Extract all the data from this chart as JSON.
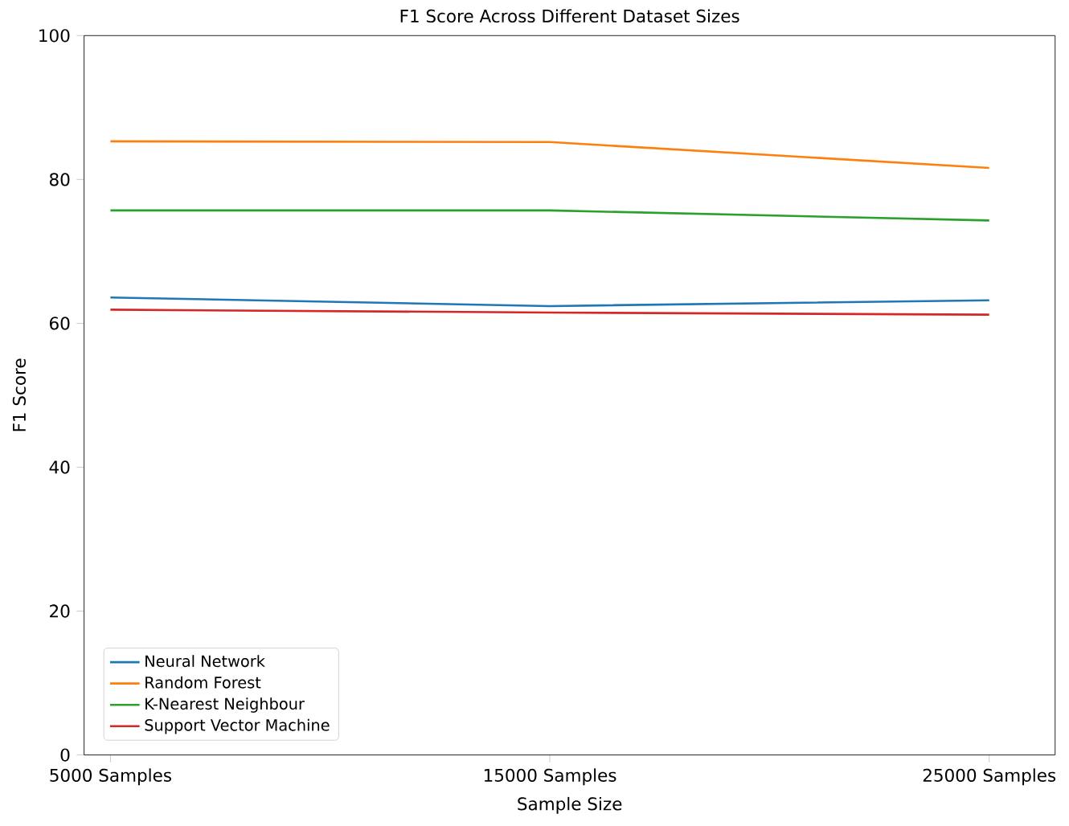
{
  "chart_data": {
    "type": "line",
    "title": "F1 Score Across Different Dataset Sizes",
    "xlabel": "Sample Size",
    "ylabel": "F1 Score",
    "categories": [
      "5000 Samples",
      "15000 Samples",
      "25000 Samples"
    ],
    "series": [
      {
        "name": "Neural Network",
        "color": "#1f77b4",
        "values": [
          63.6,
          62.4,
          63.2
        ]
      },
      {
        "name": "Random Forest",
        "color": "#ff7f0e",
        "values": [
          85.3,
          85.2,
          81.6
        ]
      },
      {
        "name": "K-Nearest Neighbour",
        "color": "#2ca02c",
        "values": [
          75.7,
          75.7,
          74.3
        ]
      },
      {
        "name": "Support Vector Machine",
        "color": "#d62728",
        "values": [
          61.9,
          61.5,
          61.2
        ]
      }
    ],
    "ylim": [
      0,
      100
    ],
    "yticks": [
      0,
      20,
      40,
      60,
      80,
      100
    ],
    "legend": "bottom left",
    "grid": false
  }
}
